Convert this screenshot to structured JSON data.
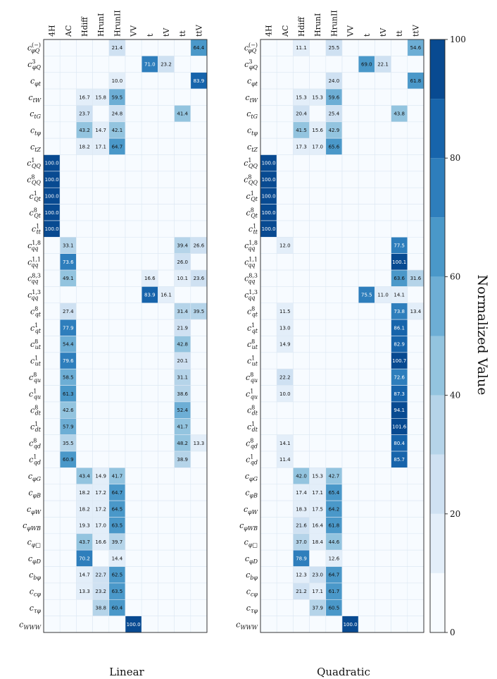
{
  "chart_data": {
    "type": "heatmap",
    "columns": [
      "4H",
      "AC",
      "Hdiff",
      "HrunI",
      "HrunII",
      "VV",
      "t",
      "tV",
      "tt",
      "ttV"
    ],
    "rows": [
      {
        "base": "c",
        "sub": "φQ",
        "sup": "(−)"
      },
      {
        "base": "c",
        "sub": "φQ",
        "sup": "3"
      },
      {
        "base": "c",
        "sub": "φt",
        "sup": ""
      },
      {
        "base": "c",
        "sub": "tW",
        "sup": ""
      },
      {
        "base": "c",
        "sub": "tG",
        "sup": ""
      },
      {
        "base": "c",
        "sub": "tφ",
        "sup": ""
      },
      {
        "base": "c",
        "sub": "tZ",
        "sup": ""
      },
      {
        "base": "c",
        "sub": "QQ",
        "sup": "1"
      },
      {
        "base": "c",
        "sub": "QQ",
        "sup": "8"
      },
      {
        "base": "c",
        "sub": "Qt",
        "sup": "1"
      },
      {
        "base": "c",
        "sub": "Qt",
        "sup": "8"
      },
      {
        "base": "c",
        "sub": "tt",
        "sup": "1"
      },
      {
        "base": "c",
        "sub": "qq",
        "sup": "1,8"
      },
      {
        "base": "c",
        "sub": "qq",
        "sup": "1,1"
      },
      {
        "base": "c",
        "sub": "qq",
        "sup": "8,3"
      },
      {
        "base": "c",
        "sub": "qq",
        "sup": "1,3"
      },
      {
        "base": "c",
        "sub": "qt",
        "sup": "8"
      },
      {
        "base": "c",
        "sub": "qt",
        "sup": "1"
      },
      {
        "base": "c",
        "sub": "ut",
        "sup": "8"
      },
      {
        "base": "c",
        "sub": "ut",
        "sup": "1"
      },
      {
        "base": "c",
        "sub": "qu",
        "sup": "8"
      },
      {
        "base": "c",
        "sub": "qu",
        "sup": "1"
      },
      {
        "base": "c",
        "sub": "dt",
        "sup": "8"
      },
      {
        "base": "c",
        "sub": "dt",
        "sup": "1"
      },
      {
        "base": "c",
        "sub": "qd",
        "sup": "8"
      },
      {
        "base": "c",
        "sub": "qd",
        "sup": "1"
      },
      {
        "base": "c",
        "sub": "φG",
        "sup": ""
      },
      {
        "base": "c",
        "sub": "φB",
        "sup": ""
      },
      {
        "base": "c",
        "sub": "φW",
        "sup": ""
      },
      {
        "base": "c",
        "sub": "φWB",
        "sup": ""
      },
      {
        "base": "c",
        "sub": "φ□",
        "sup": ""
      },
      {
        "base": "c",
        "sub": "φD",
        "sup": ""
      },
      {
        "base": "c",
        "sub": "bφ",
        "sup": ""
      },
      {
        "base": "c",
        "sub": "cφ",
        "sup": ""
      },
      {
        "base": "c",
        "sub": "τφ",
        "sup": ""
      },
      {
        "base": "c",
        "sub": "WWW",
        "sup": ""
      }
    ],
    "panels": [
      {
        "title": "Linear",
        "values": [
          [
            null,
            null,
            null,
            null,
            21.4,
            null,
            null,
            null,
            null,
            64.4
          ],
          [
            null,
            null,
            null,
            null,
            null,
            null,
            71.0,
            23.2,
            null,
            null
          ],
          [
            null,
            null,
            null,
            null,
            10.0,
            null,
            null,
            null,
            null,
            83.9
          ],
          [
            null,
            null,
            16.7,
            15.8,
            59.5,
            null,
            null,
            null,
            null,
            null
          ],
          [
            null,
            null,
            23.7,
            null,
            24.8,
            null,
            null,
            null,
            41.4,
            null
          ],
          [
            null,
            null,
            43.2,
            14.7,
            42.1,
            null,
            null,
            null,
            null,
            null
          ],
          [
            null,
            null,
            18.2,
            17.1,
            64.7,
            null,
            null,
            null,
            null,
            null
          ],
          [
            100.0,
            null,
            null,
            null,
            null,
            null,
            null,
            null,
            null,
            null
          ],
          [
            100.0,
            null,
            null,
            null,
            null,
            null,
            null,
            null,
            null,
            null
          ],
          [
            100.0,
            null,
            null,
            null,
            null,
            null,
            null,
            null,
            null,
            null
          ],
          [
            100.0,
            null,
            null,
            null,
            null,
            null,
            null,
            null,
            null,
            null
          ],
          [
            100.0,
            null,
            null,
            null,
            null,
            null,
            null,
            null,
            null,
            null
          ],
          [
            null,
            33.1,
            null,
            null,
            null,
            null,
            null,
            null,
            39.4,
            26.6
          ],
          [
            null,
            73.6,
            null,
            null,
            null,
            null,
            null,
            null,
            26.0,
            null
          ],
          [
            null,
            49.1,
            null,
            null,
            null,
            null,
            16.6,
            null,
            10.1,
            23.6
          ],
          [
            null,
            null,
            null,
            null,
            null,
            null,
            83.9,
            16.1,
            null,
            null
          ],
          [
            null,
            27.4,
            null,
            null,
            null,
            null,
            null,
            null,
            31.4,
            39.5
          ],
          [
            null,
            77.9,
            null,
            null,
            null,
            null,
            null,
            null,
            21.9,
            null
          ],
          [
            null,
            54.4,
            null,
            null,
            null,
            null,
            null,
            null,
            42.8,
            null
          ],
          [
            null,
            79.6,
            null,
            null,
            null,
            null,
            null,
            null,
            20.1,
            null
          ],
          [
            null,
            58.5,
            null,
            null,
            null,
            null,
            null,
            null,
            31.1,
            null
          ],
          [
            null,
            61.3,
            null,
            null,
            null,
            null,
            null,
            null,
            38.6,
            null
          ],
          [
            null,
            42.6,
            null,
            null,
            null,
            null,
            null,
            null,
            52.4,
            null
          ],
          [
            null,
            57.9,
            null,
            null,
            null,
            null,
            null,
            null,
            41.7,
            null
          ],
          [
            null,
            35.5,
            null,
            null,
            null,
            null,
            null,
            null,
            48.2,
            13.3
          ],
          [
            null,
            60.9,
            null,
            null,
            null,
            null,
            null,
            null,
            38.9,
            null
          ],
          [
            null,
            null,
            43.4,
            14.9,
            41.7,
            null,
            null,
            null,
            null,
            null
          ],
          [
            null,
            null,
            18.2,
            17.2,
            64.7,
            null,
            null,
            null,
            null,
            null
          ],
          [
            null,
            null,
            18.2,
            17.2,
            64.5,
            null,
            null,
            null,
            null,
            null
          ],
          [
            null,
            null,
            19.3,
            17.0,
            63.5,
            null,
            null,
            null,
            null,
            null
          ],
          [
            null,
            null,
            43.7,
            16.6,
            39.7,
            null,
            null,
            null,
            null,
            null
          ],
          [
            null,
            null,
            70.2,
            null,
            14.4,
            null,
            null,
            null,
            null,
            null
          ],
          [
            null,
            null,
            14.7,
            22.7,
            62.5,
            null,
            null,
            null,
            null,
            null
          ],
          [
            null,
            null,
            13.3,
            23.2,
            63.5,
            null,
            null,
            null,
            null,
            null
          ],
          [
            null,
            null,
            null,
            38.8,
            60.4,
            null,
            null,
            null,
            null,
            null
          ],
          [
            null,
            null,
            null,
            null,
            null,
            100.0,
            null,
            null,
            null,
            null
          ]
        ]
      },
      {
        "title": "Quadratic",
        "values": [
          [
            null,
            null,
            11.1,
            null,
            25.5,
            null,
            null,
            null,
            null,
            54.6
          ],
          [
            null,
            null,
            null,
            null,
            null,
            null,
            69.0,
            22.1,
            null,
            null
          ],
          [
            null,
            null,
            null,
            null,
            24.0,
            null,
            null,
            null,
            null,
            61.8
          ],
          [
            null,
            null,
            15.3,
            15.3,
            59.6,
            null,
            null,
            null,
            null,
            null
          ],
          [
            null,
            null,
            20.4,
            null,
            25.4,
            null,
            null,
            null,
            43.8,
            null
          ],
          [
            null,
            null,
            41.5,
            15.6,
            42.9,
            null,
            null,
            null,
            null,
            null
          ],
          [
            null,
            null,
            17.3,
            17.0,
            65.6,
            null,
            null,
            null,
            null,
            null
          ],
          [
            100.0,
            null,
            null,
            null,
            null,
            null,
            null,
            null,
            null,
            null
          ],
          [
            100.0,
            null,
            null,
            null,
            null,
            null,
            null,
            null,
            null,
            null
          ],
          [
            100.0,
            null,
            null,
            null,
            null,
            null,
            null,
            null,
            null,
            null
          ],
          [
            100.0,
            null,
            null,
            null,
            null,
            null,
            null,
            null,
            null,
            null
          ],
          [
            100.0,
            null,
            null,
            null,
            null,
            null,
            null,
            null,
            null,
            null
          ],
          [
            null,
            12.0,
            null,
            null,
            null,
            null,
            null,
            null,
            77.5,
            null
          ],
          [
            null,
            null,
            null,
            null,
            null,
            null,
            null,
            null,
            100.1,
            null
          ],
          [
            null,
            null,
            null,
            null,
            null,
            null,
            null,
            null,
            63.6,
            31.6
          ],
          [
            null,
            null,
            null,
            null,
            null,
            null,
            75.5,
            11.0,
            14.1,
            null
          ],
          [
            null,
            11.5,
            null,
            null,
            null,
            null,
            null,
            null,
            73.8,
            13.4
          ],
          [
            null,
            13.0,
            null,
            null,
            null,
            null,
            null,
            null,
            86.1,
            null
          ],
          [
            null,
            14.9,
            null,
            null,
            null,
            null,
            null,
            null,
            82.9,
            null
          ],
          [
            null,
            null,
            null,
            null,
            null,
            null,
            null,
            null,
            100.7,
            null
          ],
          [
            null,
            22.2,
            null,
            null,
            null,
            null,
            null,
            null,
            72.6,
            null
          ],
          [
            null,
            10.0,
            null,
            null,
            null,
            null,
            null,
            null,
            87.3,
            null
          ],
          [
            null,
            null,
            null,
            null,
            null,
            null,
            null,
            null,
            94.1,
            null
          ],
          [
            null,
            null,
            null,
            null,
            null,
            null,
            null,
            null,
            101.6,
            null
          ],
          [
            null,
            14.1,
            null,
            null,
            null,
            null,
            null,
            null,
            80.4,
            null
          ],
          [
            null,
            11.4,
            null,
            null,
            null,
            null,
            null,
            null,
            85.7,
            null
          ],
          [
            null,
            null,
            42.0,
            15.3,
            42.7,
            null,
            null,
            null,
            null,
            null
          ],
          [
            null,
            null,
            17.4,
            17.1,
            65.4,
            null,
            null,
            null,
            null,
            null
          ],
          [
            null,
            null,
            18.3,
            17.5,
            64.2,
            null,
            null,
            null,
            null,
            null
          ],
          [
            null,
            null,
            21.6,
            16.4,
            61.8,
            null,
            null,
            null,
            null,
            null
          ],
          [
            null,
            null,
            37.0,
            18.4,
            44.6,
            null,
            null,
            null,
            null,
            null
          ],
          [
            null,
            null,
            78.9,
            null,
            12.6,
            null,
            null,
            null,
            null,
            null
          ],
          [
            null,
            null,
            12.3,
            23.0,
            64.7,
            null,
            null,
            null,
            null,
            null
          ],
          [
            null,
            null,
            21.2,
            17.1,
            61.7,
            null,
            null,
            null,
            null,
            null
          ],
          [
            null,
            null,
            null,
            37.9,
            60.5,
            null,
            null,
            null,
            null,
            null
          ],
          [
            null,
            null,
            null,
            null,
            null,
            100.0,
            null,
            null,
            null,
            null
          ]
        ]
      }
    ],
    "colorbar": {
      "label": "Normalized Value",
      "range": [
        0,
        100
      ],
      "ticks": [
        0,
        20,
        40,
        60,
        80,
        100
      ],
      "step": 10,
      "colors": [
        "#f7fbff",
        "#e3eef9",
        "#cfe1f2",
        "#b5d4e9",
        "#93c4df",
        "#6daed5",
        "#4a98c9",
        "#2e7ebc",
        "#1764ab",
        "#084a91"
      ]
    }
  }
}
